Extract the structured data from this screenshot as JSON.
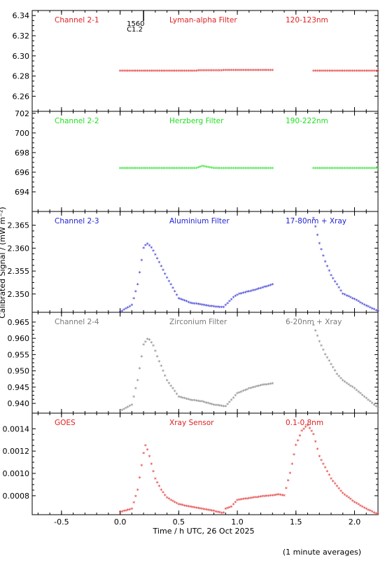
{
  "figure": {
    "ylabel": "Calibrated Signal / (mW m⁻²)",
    "xlabel": "Time / h UTC, 26 Oct 2025",
    "footnote": "(1 minute averages)",
    "x_tick_labels": [
      "-0.5",
      "0.0",
      "0.5",
      "1.0",
      "1.5",
      "2.0"
    ]
  },
  "chart_data": [
    {
      "type": "scatter",
      "labels": [
        "Channel 2-1",
        "Lyman-alpha Filter",
        "120-123nm"
      ],
      "color": "#e01f1f",
      "ylim": [
        6.245,
        6.345
      ],
      "yticks": [
        6.26,
        6.28,
        6.3,
        6.32,
        6.34
      ],
      "ytick_labels": [
        "6.26",
        "6.28",
        "6.30",
        "6.32",
        "6.34"
      ],
      "marker_annotation": {
        "x": 0.2,
        "label_top": "1560",
        "label_bottom": "C1.2"
      },
      "segments": [
        {
          "x": [
            0.0,
            0.3,
            0.6,
            0.9,
            1.3
          ],
          "y": [
            6.285,
            6.285,
            6.285,
            6.2855,
            6.2855
          ]
        },
        {
          "x": [
            1.65,
            2.2
          ],
          "y": [
            6.285,
            6.285
          ]
        }
      ]
    },
    {
      "type": "scatter",
      "labels": [
        "Channel 2-2",
        "Herzberg Filter",
        "190-222nm"
      ],
      "color": "#1fe01f",
      "ylim": [
        692.0,
        702.2
      ],
      "yticks": [
        694,
        696,
        698,
        700,
        702
      ],
      "ytick_labels": [
        "694",
        "696",
        "698",
        "700",
        "702"
      ],
      "segments": [
        {
          "x": [
            0.0,
            0.5,
            0.65,
            0.7,
            0.8,
            1.3
          ],
          "y": [
            696.4,
            696.4,
            696.4,
            696.6,
            696.4,
            696.4
          ]
        },
        {
          "x": [
            1.65,
            2.2
          ],
          "y": [
            696.4,
            696.4
          ]
        }
      ]
    },
    {
      "type": "scatter",
      "labels": [
        "Channel 2-3",
        "Aluminium Filter",
        "17-80nm + Xray"
      ],
      "color": "#1f1fd0",
      "ylim": [
        2.346,
        2.368
      ],
      "yticks": [
        2.35,
        2.355,
        2.36,
        2.365
      ],
      "ytick_labels": [
        "2.350",
        "2.355",
        "2.360",
        "2.365"
      ],
      "segments": [
        {
          "x": [
            0.0,
            0.1,
            0.15,
            0.2,
            0.23,
            0.27,
            0.3,
            0.35,
            0.4,
            0.5,
            0.6,
            0.7,
            0.8,
            0.88,
            0.92,
            0.97,
            1.02,
            1.1,
            1.2,
            1.3
          ],
          "y": [
            2.346,
            2.3475,
            2.352,
            2.36,
            2.361,
            2.36,
            2.3585,
            2.356,
            2.3535,
            2.349,
            2.348,
            2.3476,
            2.3472,
            2.347,
            2.348,
            2.3493,
            2.35,
            2.3505,
            2.3512,
            2.352
          ]
        },
        {
          "x": [
            1.65,
            1.7,
            1.75,
            1.8,
            1.85,
            1.9,
            2.0,
            2.1,
            2.2
          ],
          "y": [
            2.3665,
            2.361,
            2.357,
            2.354,
            2.352,
            2.35,
            2.3488,
            2.3474,
            2.3462
          ]
        }
      ]
    },
    {
      "type": "scatter",
      "labels": [
        "Channel 2-4",
        "Zirconium Filter",
        "6-20nm + Xray"
      ],
      "color": "#7a7a7a",
      "ylim": [
        0.937,
        0.968
      ],
      "yticks": [
        0.94,
        0.945,
        0.95,
        0.955,
        0.96,
        0.965
      ],
      "ytick_labels": [
        "0.940",
        "0.945",
        "0.950",
        "0.955",
        "0.960",
        "0.965"
      ],
      "segments": [
        {
          "x": [
            0.0,
            0.1,
            0.15,
            0.2,
            0.24,
            0.28,
            0.32,
            0.4,
            0.5,
            0.6,
            0.7,
            0.8,
            0.9,
            0.95,
            1.0,
            1.1,
            1.2,
            1.3
          ],
          "y": [
            0.9375,
            0.9395,
            0.947,
            0.958,
            0.96,
            0.958,
            0.954,
            0.947,
            0.942,
            0.941,
            0.9405,
            0.9395,
            0.939,
            0.941,
            0.943,
            0.9445,
            0.9455,
            0.946
          ]
        },
        {
          "x": [
            1.65,
            1.7,
            1.75,
            1.8,
            1.85,
            1.9,
            2.0,
            2.1,
            2.2
          ],
          "y": [
            0.964,
            0.959,
            0.955,
            0.952,
            0.949,
            0.947,
            0.9445,
            0.9415,
            0.9385
          ]
        }
      ]
    },
    {
      "type": "scatter",
      "labels": [
        "GOES",
        "Xray Sensor",
        "0.1-0.8nm"
      ],
      "color": "#e01f1f",
      "ylim": [
        0.00063,
        0.00154
      ],
      "yticks": [
        0.0008,
        0.001,
        0.0012,
        0.0014
      ],
      "ytick_labels": [
        "0.0008",
        "0.0010",
        "0.0012",
        "0.0014"
      ],
      "segments": [
        {
          "x": [
            0.0,
            0.1,
            0.15,
            0.2,
            0.22,
            0.25,
            0.3,
            0.35,
            0.4,
            0.5,
            0.6,
            0.7,
            0.8,
            0.88,
            0.9,
            0.95,
            1.0,
            1.2,
            1.3,
            1.35,
            1.4,
            1.45,
            1.5,
            1.55,
            1.6,
            1.65,
            1.7,
            1.8,
            1.9,
            2.0,
            2.1,
            2.2
          ],
          "y": [
            0.00065,
            0.00068,
            0.00085,
            0.00118,
            0.00126,
            0.00115,
            0.00095,
            0.00085,
            0.00078,
            0.00072,
            0.0007,
            0.00068,
            0.00066,
            0.00064,
            0.00068,
            0.0007,
            0.00076,
            0.00079,
            0.0008,
            0.00081,
            0.0008,
            0.001,
            0.00125,
            0.00138,
            0.00143,
            0.00135,
            0.00115,
            0.00095,
            0.00082,
            0.00074,
            0.00068,
            0.00063
          ]
        }
      ]
    }
  ]
}
